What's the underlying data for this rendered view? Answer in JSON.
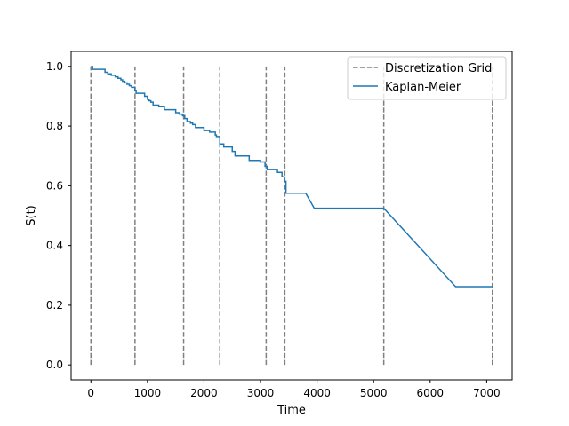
{
  "chart_data": {
    "type": "line",
    "title": "",
    "xlabel": "Time",
    "ylabel": "S(t)",
    "xlim": [
      -350,
      7450
    ],
    "ylim": [
      -0.05,
      1.05
    ],
    "xticks": [
      0,
      1000,
      2000,
      3000,
      4000,
      5000,
      6000,
      7000
    ],
    "yticks": [
      0.0,
      0.2,
      0.4,
      0.6,
      0.8,
      1.0
    ],
    "xtick_labels": [
      "0",
      "1000",
      "2000",
      "3000",
      "4000",
      "5000",
      "6000",
      "7000"
    ],
    "ytick_labels": [
      "0.0",
      "0.2",
      "0.4",
      "0.6",
      "0.8",
      "1.0"
    ],
    "grid": false,
    "legend": {
      "placement": "top-right",
      "entries": [
        "Discretization Grid",
        "Kaplan-Meier"
      ]
    },
    "grid_lines": {
      "name": "Discretization Grid",
      "color": "#808080",
      "style": "dashed",
      "x": [
        0,
        780,
        1640,
        2280,
        3100,
        3430,
        5180,
        7100
      ],
      "y_range": [
        0.0,
        1.0
      ]
    },
    "series": [
      {
        "name": "Kaplan-Meier",
        "color": "#1f77b4",
        "style": "step-post",
        "x": [
          0,
          30,
          250,
          300,
          360,
          430,
          480,
          530,
          560,
          600,
          640,
          680,
          720,
          780,
          800,
          950,
          1000,
          1030,
          1060,
          1100,
          1200,
          1300,
          1500,
          1560,
          1620,
          1660,
          1700,
          1760,
          1800,
          1850,
          2000,
          2100,
          2200,
          2220,
          2280,
          2350,
          2500,
          2550,
          2800,
          3000,
          3080,
          3120,
          3300,
          3380,
          3420,
          3450,
          3800
        ],
        "y": [
          1.0,
          0.99,
          0.98,
          0.975,
          0.97,
          0.965,
          0.96,
          0.955,
          0.95,
          0.945,
          0.94,
          0.935,
          0.93,
          0.92,
          0.91,
          0.9,
          0.89,
          0.885,
          0.88,
          0.87,
          0.865,
          0.855,
          0.845,
          0.84,
          0.835,
          0.825,
          0.815,
          0.81,
          0.805,
          0.795,
          0.785,
          0.78,
          0.77,
          0.765,
          0.74,
          0.73,
          0.715,
          0.7,
          0.685,
          0.68,
          0.665,
          0.655,
          0.645,
          0.63,
          0.615,
          0.575,
          0.575
        ]
      },
      {
        "name": "Kaplan-Meier-tail",
        "color": "#1f77b4",
        "style": "linear",
        "x": [
          3800,
          3950,
          5180,
          6450,
          7100
        ],
        "y": [
          0.575,
          0.525,
          0.525,
          0.262,
          0.262
        ]
      }
    ]
  }
}
